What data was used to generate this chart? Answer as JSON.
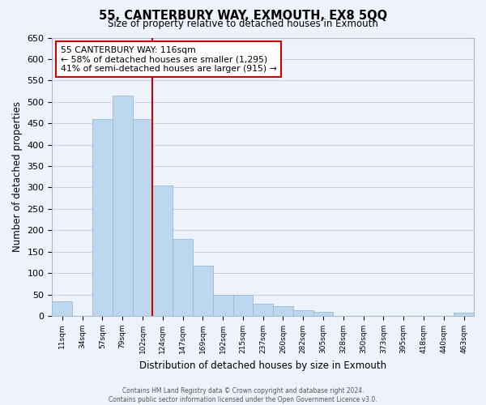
{
  "title": "55, CANTERBURY WAY, EXMOUTH, EX8 5QQ",
  "subtitle": "Size of property relative to detached houses in Exmouth",
  "xlabel": "Distribution of detached houses by size in Exmouth",
  "ylabel": "Number of detached properties",
  "categories": [
    "11sqm",
    "34sqm",
    "57sqm",
    "79sqm",
    "102sqm",
    "124sqm",
    "147sqm",
    "169sqm",
    "192sqm",
    "215sqm",
    "237sqm",
    "260sqm",
    "282sqm",
    "305sqm",
    "328sqm",
    "350sqm",
    "373sqm",
    "395sqm",
    "418sqm",
    "440sqm",
    "463sqm"
  ],
  "bar_heights": [
    35,
    0,
    460,
    515,
    460,
    305,
    180,
    118,
    50,
    50,
    28,
    22,
    13,
    10,
    0,
    0,
    0,
    0,
    0,
    0,
    8
  ],
  "bar_color": "#bdd7ee",
  "bar_edge_color": "#9ab8d4",
  "vline_color": "#cc0000",
  "annotation_title": "55 CANTERBURY WAY: 116sqm",
  "annotation_line1": "← 58% of detached houses are smaller (1,295)",
  "annotation_line2": "41% of semi-detached houses are larger (915) →",
  "annotation_box_color": "white",
  "annotation_box_edge": "#cc0000",
  "ylim": [
    0,
    650
  ],
  "yticks": [
    0,
    50,
    100,
    150,
    200,
    250,
    300,
    350,
    400,
    450,
    500,
    550,
    600,
    650
  ],
  "footer1": "Contains HM Land Registry data © Crown copyright and database right 2024.",
  "footer2": "Contains public sector information licensed under the Open Government Licence v3.0.",
  "bg_color": "#eef2fb",
  "grid_color": "#c8d0e8"
}
